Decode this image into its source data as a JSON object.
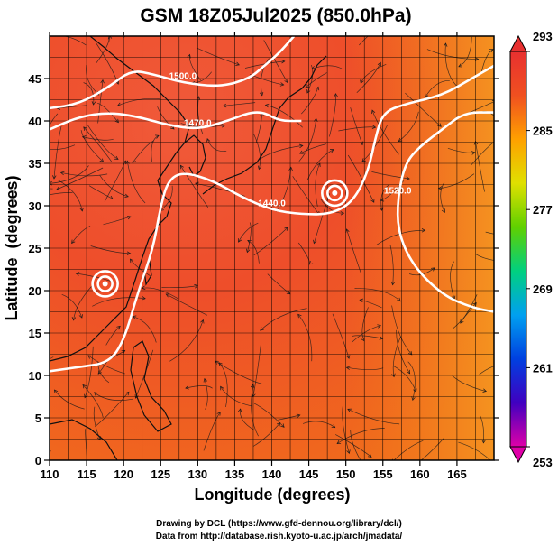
{
  "chart_data": {
    "type": "heatmap",
    "title": "GSM 18Z05Jul2025 (850.0hPa)",
    "xlabel": "Longitude (degrees)",
    "ylabel": "Latitude  (degrees)",
    "xlim": [
      110,
      170
    ],
    "ylim": [
      0,
      50
    ],
    "x_ticks": [
      110,
      115,
      120,
      125,
      130,
      135,
      140,
      145,
      150,
      155,
      160,
      165
    ],
    "y_ticks": [
      0,
      5,
      10,
      15,
      20,
      25,
      30,
      35,
      40,
      45
    ],
    "grid": true,
    "colorbar": {
      "ticks": [
        253,
        261,
        269,
        277,
        285,
        293
      ],
      "min": 253,
      "max": 293,
      "colors": [
        "#e000a8",
        "#4000c0",
        "#0040e0",
        "#00a0f0",
        "#00d080",
        "#60d000",
        "#e0e000",
        "#ffa000",
        "#f05020",
        "#e83030"
      ]
    },
    "contours": [
      {
        "label": "1500.0",
        "points": [
          [
            110,
            41.5
          ],
          [
            114,
            42
          ],
          [
            118,
            44
          ],
          [
            121,
            46
          ],
          [
            124,
            45.5
          ],
          [
            128,
            44.5
          ],
          [
            133,
            44
          ],
          [
            137,
            45
          ],
          [
            139,
            46.5
          ],
          [
            141,
            48
          ],
          [
            143,
            50
          ]
        ]
      },
      {
        "label": "1470.0",
        "points": [
          [
            110,
            39
          ],
          [
            114,
            40.5
          ],
          [
            118,
            41
          ],
          [
            122,
            40.5
          ],
          [
            126,
            39.5
          ],
          [
            130,
            39
          ],
          [
            134,
            40
          ],
          [
            137,
            41
          ],
          [
            139,
            41
          ],
          [
            141,
            40
          ],
          [
            144,
            40
          ]
        ]
      },
      {
        "label": "1440.0",
        "points": [
          [
            110,
            10.5
          ],
          [
            114,
            11
          ],
          [
            118,
            11.5
          ],
          [
            120,
            14
          ],
          [
            122,
            20
          ],
          [
            124,
            25
          ],
          [
            125,
            30
          ],
          [
            126,
            33
          ],
          [
            128,
            34
          ],
          [
            132,
            33
          ],
          [
            136,
            31
          ],
          [
            140,
            29.5
          ],
          [
            144,
            29
          ],
          [
            148,
            29
          ],
          [
            151,
            30.5
          ],
          [
            153,
            34
          ],
          [
            154,
            38
          ],
          [
            155,
            41
          ],
          [
            158,
            42
          ],
          [
            163,
            43
          ],
          [
            167,
            45
          ],
          [
            170,
            46.5
          ]
        ]
      },
      {
        "label": "1520.0",
        "points": [
          [
            170,
            41
          ],
          [
            166,
            41
          ],
          [
            163,
            39
          ],
          [
            160,
            37
          ],
          [
            158,
            35
          ],
          [
            157,
            31
          ],
          [
            157,
            27
          ],
          [
            159,
            23
          ],
          [
            163,
            19.5
          ],
          [
            167,
            18
          ],
          [
            170,
            17.5
          ]
        ]
      }
    ],
    "lows": [
      {
        "x": 117.5,
        "y": 20.8
      },
      {
        "x": 148.5,
        "y": 31.5
      }
    ],
    "footer": [
      "Drawing by DCL (https://www.gfd-dennou.org/library/dcl/)",
      "Data from http://database.rish.kyoto-u.ac.jp/arch/jmadata/"
    ]
  }
}
